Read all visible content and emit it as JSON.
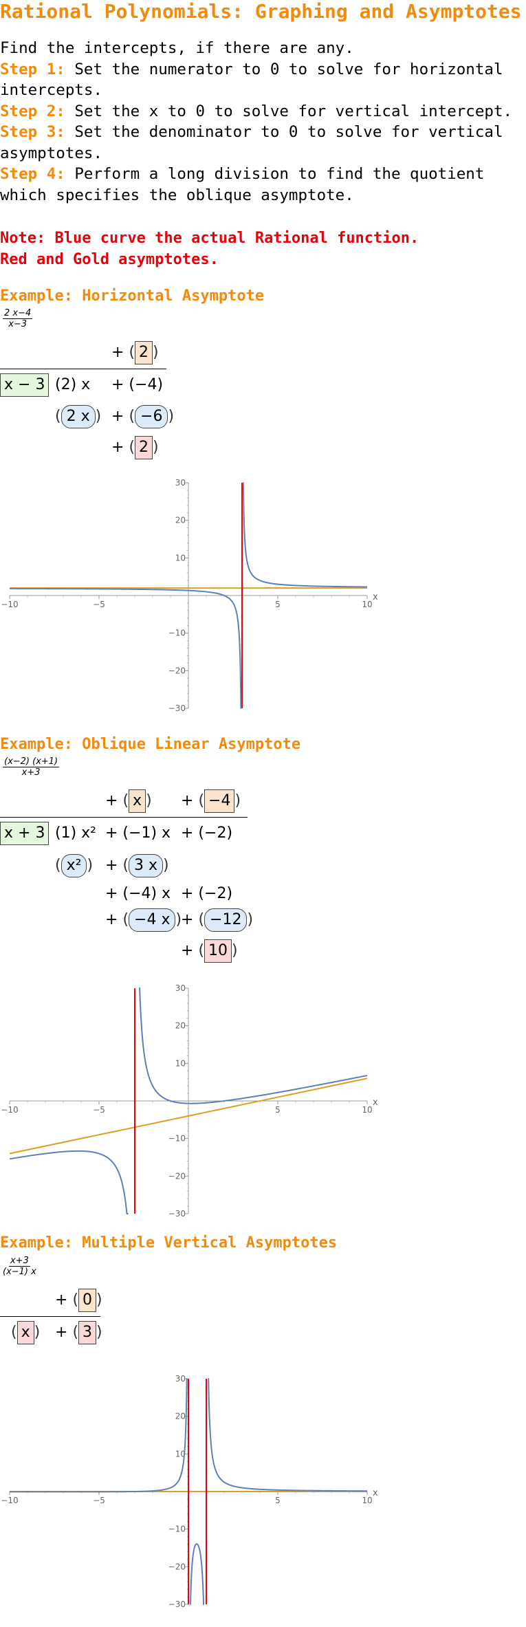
{
  "title": "Rational Polynomials: Graphing and Asymptotes",
  "intro": {
    "line1": "Find the intercepts, if there are any.",
    "steps": [
      {
        "label": "Step 1:",
        "text": " Set the numerator to 0 to solve for horizontal intercepts."
      },
      {
        "label": "Step 2:",
        "text": " Set the x to 0 to solve for vertical intercept."
      },
      {
        "label": "Step 3:",
        "text": " Set the denominator to 0 to solve for vertical asymptotes."
      },
      {
        "label": "Step 4:",
        "text": " Perform a long division to find the quotient which specifies the oblique asymptote."
      }
    ]
  },
  "note": {
    "line1": "Note: Blue curve the actual Rational function.",
    "line2": "Red and Gold asymptotes."
  },
  "colors": {
    "heading": "#f28a0c",
    "note": "#e8000b",
    "curve": "#5e81b5",
    "vertical_asymptote": "#e8000b",
    "other_asymptote": "#e19c24"
  },
  "examples": [
    {
      "heading": "Example: Horizontal Asymptote",
      "fraction": {
        "num": "2 x−4",
        "den": "x−3"
      },
      "division": {
        "quotient": [
          "2"
        ],
        "divisor": "x − 3",
        "dividend": [
          "(2) x",
          "+ (−4)"
        ],
        "subtract1": [
          "2 x",
          "−6"
        ],
        "remainder": "2"
      }
    },
    {
      "heading": "Example: Oblique Linear Asymptote",
      "fraction": {
        "num": "(x−2) (x+1)",
        "den": "x+3"
      },
      "division": {
        "quotient": [
          "x",
          "−4"
        ],
        "divisor": "x + 3",
        "dividend": [
          "(1) x²",
          "+ (−1) x",
          "+ (−2)"
        ],
        "subtract1": [
          "x²",
          "3 x"
        ],
        "row2": [
          "+ (−4) x",
          "+ (−2)"
        ],
        "subtract2": [
          "−4 x",
          "−12"
        ],
        "remainder": "10"
      }
    },
    {
      "heading": "Example: Multiple Vertical Asymptotes",
      "fraction": {
        "num": "x+3",
        "den": "(x−1) x"
      },
      "division": {
        "quotient": [
          "0"
        ],
        "divisor": [
          "x",
          "3"
        ]
      }
    }
  ],
  "chart_data": [
    {
      "type": "line",
      "xlim": [
        -10,
        10
      ],
      "ylim": [
        -30,
        30
      ],
      "xticks": [
        "−10",
        "−5",
        "5",
        "10"
      ],
      "yticks": [
        "30",
        "20",
        "10",
        "−10",
        "−20",
        "−30"
      ],
      "xlabel": "x",
      "function": "(2x-4)/(x-3)",
      "vertical_asymptotes": [
        3
      ],
      "other_asymptote": {
        "slope": 0,
        "intercept": 2
      }
    },
    {
      "type": "line",
      "xlim": [
        -10,
        10
      ],
      "ylim": [
        -30,
        30
      ],
      "xticks": [
        "−10",
        "−5",
        "5",
        "10"
      ],
      "yticks": [
        "30",
        "20",
        "10",
        "−10",
        "−20",
        "−30"
      ],
      "xlabel": "x",
      "function": "(x-2)(x+1)/(x+3)",
      "vertical_asymptotes": [
        -3
      ],
      "other_asymptote": {
        "slope": 1,
        "intercept": -4
      }
    },
    {
      "type": "line",
      "xlim": [
        -10,
        10
      ],
      "ylim": [
        -30,
        30
      ],
      "xticks": [
        "−10",
        "−5",
        "5",
        "10"
      ],
      "yticks": [
        "30",
        "20",
        "10",
        "−10",
        "−20",
        "−30"
      ],
      "xlabel": "x",
      "function": "(x+3)/((x-1)x)",
      "vertical_asymptotes": [
        0,
        1
      ],
      "other_asymptote": {
        "slope": 0,
        "intercept": 0
      }
    }
  ]
}
